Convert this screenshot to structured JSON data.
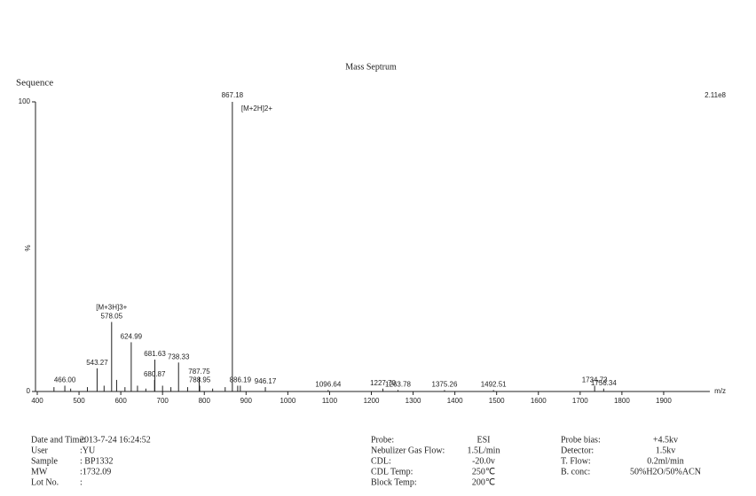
{
  "chart_data": {
    "type": "stem",
    "title": "Mass Septrum",
    "corner_label": "Sequence",
    "scale_label": "2.11e8",
    "x_label": "m/z",
    "y_label": "%",
    "x": [
      440,
      466.0,
      480,
      520,
      543.27,
      560,
      578.05,
      590,
      610,
      624.99,
      640,
      660,
      680.87,
      681.63,
      700,
      720,
      738.33,
      760,
      787.75,
      788.95,
      820,
      850,
      867.18,
      880,
      886.19,
      946.17,
      1096.64,
      1227.7,
      1263.78,
      1375.26,
      1492.51,
      1734.73,
      1756.34
    ],
    "values": [
      1.5,
      2,
      1,
      1.5,
      8,
      2,
      24,
      4,
      1.5,
      17,
      2,
      1,
      4,
      11,
      2,
      1.5,
      10,
      1.5,
      5,
      2,
      1,
      1.5,
      100,
      2,
      2,
      1.5,
      0.5,
      1,
      0.5,
      0.5,
      0.5,
      2,
      1
    ],
    "x_labels": [
      null,
      "466.00",
      null,
      null,
      "543.27",
      null,
      "578.05",
      null,
      null,
      "624.99",
      null,
      null,
      "680.87",
      "681.63",
      null,
      null,
      "738.33",
      null,
      "787.75",
      "788.95",
      null,
      null,
      "867.18",
      null,
      "886.19",
      "946.17",
      "1096.64",
      "1227.70",
      "1263.78",
      "1375.26",
      "1492.51",
      "1734.73",
      "1756.34"
    ],
    "annotations": [
      {
        "index": 6,
        "text": "[M+3H]3+"
      },
      {
        "index": 22,
        "text": "[M+2H]2+"
      }
    ],
    "color": "#222222",
    "xlim": [
      400,
      2000
    ],
    "xticks": [
      400,
      500,
      600,
      700,
      800,
      900,
      1000,
      1100,
      1200,
      1300,
      1400,
      1500,
      1600,
      1700,
      1800,
      1900
    ],
    "ylim": [
      0,
      100
    ],
    "yticks": [
      0,
      100
    ]
  },
  "info": {
    "left": [
      [
        "Date and Time:",
        "2013-7-24 16:24:52"
      ],
      [
        "User",
        ":YU"
      ],
      [
        "Sample",
        ": BP1332"
      ],
      [
        "MW",
        ":1732.09"
      ],
      [
        "Lot No.",
        ":"
      ]
    ],
    "middle": [
      [
        "Probe:",
        "ESI"
      ],
      [
        "Nebulizer Gas Flow:",
        "1.5L/min"
      ],
      [
        "CDL:",
        "-20.0v"
      ],
      [
        "CDL Temp:",
        "250℃"
      ],
      [
        "Block Temp:",
        "200℃"
      ]
    ],
    "right": [
      [
        "Probe bias:",
        "+4.5kv"
      ],
      [
        "Detector:",
        "1.5kv"
      ],
      [
        "T. Flow:",
        "0.2ml/min"
      ],
      [
        "B. conc:",
        "50%H2O/50%ACN"
      ]
    ]
  }
}
